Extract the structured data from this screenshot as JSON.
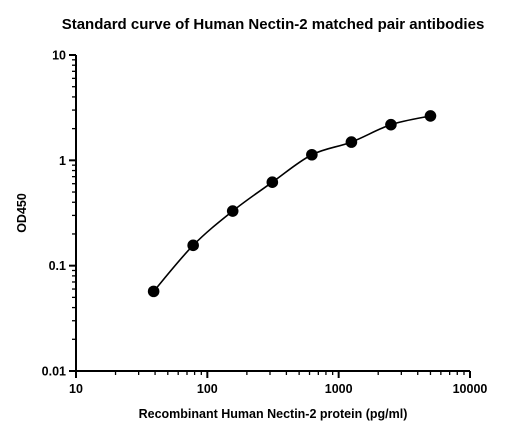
{
  "chart_data": {
    "type": "scatter",
    "title": "Standard curve of Human Nectin-2 matched pair antibodies",
    "xlabel": "Recombinant Human Nectin-2 protein (pg/ml)",
    "ylabel": "OD450",
    "x_scale": "log",
    "y_scale": "log",
    "xlim": [
      10,
      10000
    ],
    "ylim": [
      0.01,
      10
    ],
    "x_ticks": [
      "10",
      "100",
      "1000",
      "10000"
    ],
    "y_ticks": [
      "0.01",
      "0.1",
      "1",
      "10"
    ],
    "grid": false,
    "legend": "none",
    "fit_curve": true,
    "series": [
      {
        "x": [
          39,
          78,
          156,
          312.5,
          625,
          1250,
          2500,
          5000
        ],
        "y": [
          0.057,
          0.156,
          0.33,
          0.62,
          1.13,
          1.49,
          2.18,
          2.64
        ]
      }
    ]
  }
}
